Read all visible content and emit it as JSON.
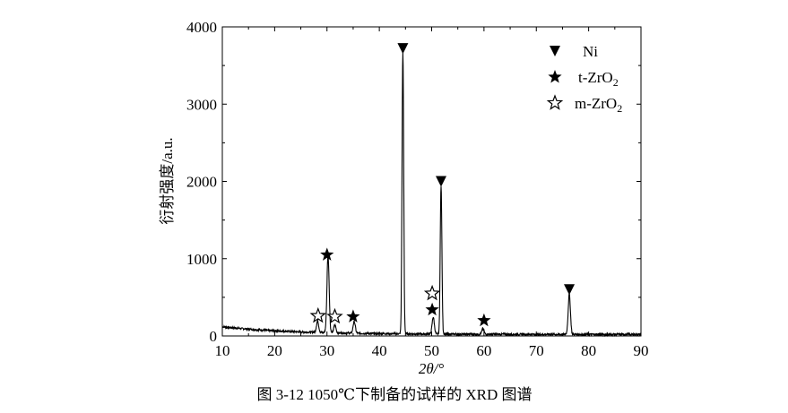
{
  "chart_data": {
    "type": "line",
    "title": "",
    "caption": "图 3-12 1050℃下制备的试样的 XRD 图谱",
    "xlabel": "2θ/°",
    "ylabel": "衍射强度/a.u.",
    "xlim": [
      10,
      90
    ],
    "ylim": [
      0,
      4000
    ],
    "xticks": [
      "10",
      "20",
      "30",
      "40",
      "50",
      "60",
      "70",
      "80",
      "90"
    ],
    "yticks": [
      "0",
      "1000",
      "2000",
      "3000",
      "4000"
    ],
    "grid": false,
    "legend_position": "top-right",
    "line_color": "#000000",
    "peaks": [
      {
        "x": 28.2,
        "y": 150
      },
      {
        "x": 30.2,
        "y": 1000
      },
      {
        "x": 31.5,
        "y": 100
      },
      {
        "x": 35.2,
        "y": 150
      },
      {
        "x": 44.5,
        "y": 3650
      },
      {
        "x": 50.3,
        "y": 220
      },
      {
        "x": 51.8,
        "y": 1920
      },
      {
        "x": 59.8,
        "y": 70
      },
      {
        "x": 76.3,
        "y": 520
      }
    ],
    "background": {
      "start": 120,
      "end": 20
    },
    "legend": [
      {
        "marker": "filled-triangle-down",
        "label": "Ni"
      },
      {
        "marker": "filled-star",
        "label": "t-ZrO",
        "sub": "2"
      },
      {
        "marker": "open-star",
        "label": "m-ZrO",
        "sub": "2"
      }
    ],
    "markers": [
      {
        "phase": "Ni",
        "marker": "filled-triangle-down",
        "x": 44.5,
        "y": 3720
      },
      {
        "phase": "Ni",
        "marker": "filled-triangle-down",
        "x": 51.8,
        "y": 2000
      },
      {
        "phase": "Ni",
        "marker": "filled-triangle-down",
        "x": 76.3,
        "y": 600
      },
      {
        "phase": "t-ZrO2",
        "marker": "filled-star",
        "x": 30.0,
        "y": 1050
      },
      {
        "phase": "t-ZrO2",
        "marker": "filled-star",
        "x": 35.0,
        "y": 250
      },
      {
        "phase": "t-ZrO2",
        "marker": "filled-star",
        "x": 50.1,
        "y": 340
      },
      {
        "phase": "t-ZrO2",
        "marker": "filled-star",
        "x": 60.0,
        "y": 200
      },
      {
        "phase": "m-ZrO2",
        "marker": "open-star",
        "x": 28.3,
        "y": 260
      },
      {
        "phase": "m-ZrO2",
        "marker": "open-star",
        "x": 31.5,
        "y": 250
      },
      {
        "phase": "m-ZrO2",
        "marker": "open-star",
        "x": 50.1,
        "y": 550
      }
    ]
  }
}
